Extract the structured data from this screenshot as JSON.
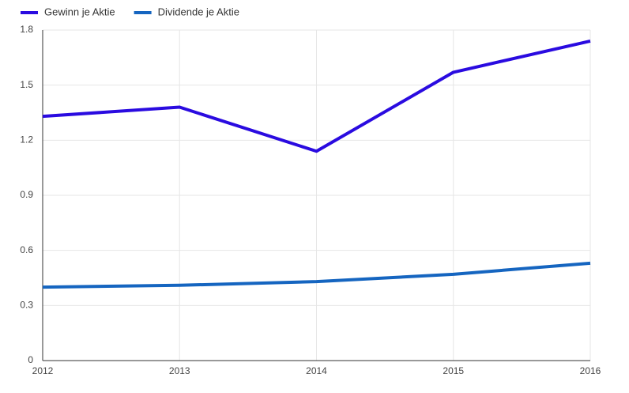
{
  "chart_data": {
    "type": "line",
    "categories": [
      "2012",
      "2013",
      "2014",
      "2015",
      "2016"
    ],
    "series": [
      {
        "name": "Gewinn je Aktie",
        "color": "#2a0be0",
        "values": [
          1.33,
          1.38,
          1.14,
          1.57,
          1.74
        ]
      },
      {
        "name": "Dividende je Aktie",
        "color": "#1565c0",
        "values": [
          0.4,
          0.41,
          0.43,
          0.47,
          0.53
        ]
      }
    ],
    "ylim": [
      0,
      1.8
    ],
    "yticks": [
      0,
      0.3,
      0.6,
      0.9,
      1.2,
      1.5,
      1.8
    ],
    "grid": true,
    "legend": "top-left"
  }
}
